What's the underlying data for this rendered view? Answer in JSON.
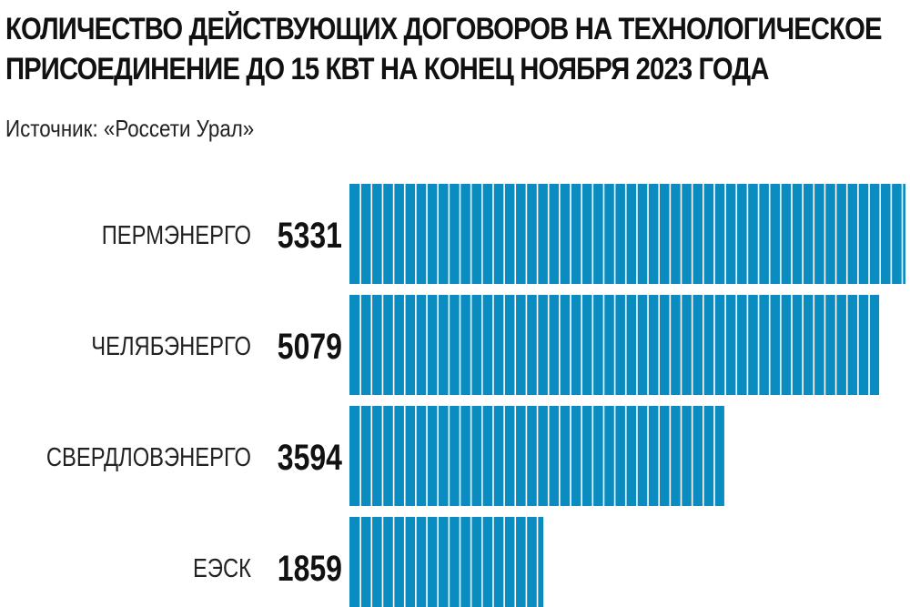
{
  "header": {
    "title_line1": "КОЛИЧЕСТВО ДЕЙСТВУЮЩИХ ДОГОВОРОВ НА ТЕХНОЛОГИЧЕСКОЕ",
    "title_line2": "ПРИСОЕДИНЕНИЕ ДО 15 КВТ НА КОНЕЦ НОЯБРЯ 2023 ГОДА",
    "source": "Источник: «Россети Урал»"
  },
  "chart_data": {
    "type": "bar",
    "orientation": "horizontal",
    "title": "КОЛИЧЕСТВО ДЕЙСТВУЮЩИХ ДОГОВОРОВ НА ТЕХНОЛОГИЧЕСКОЕ ПРИСОЕДИНЕНИЕ ДО 15 КВТ НА КОНЕЦ НОЯБРЯ 2023 ГОДА",
    "categories": [
      "ПЕРМЭНЕРГО",
      "ЧЕЛЯБЭНЕРГО",
      "СВЕРДЛОВЭНЕРГО",
      "ЕЭСК"
    ],
    "values": [
      5331,
      5079,
      3594,
      1859
    ],
    "xlim": [
      0,
      5331
    ],
    "grid": false,
    "bar_color": "#0a8cc0"
  }
}
